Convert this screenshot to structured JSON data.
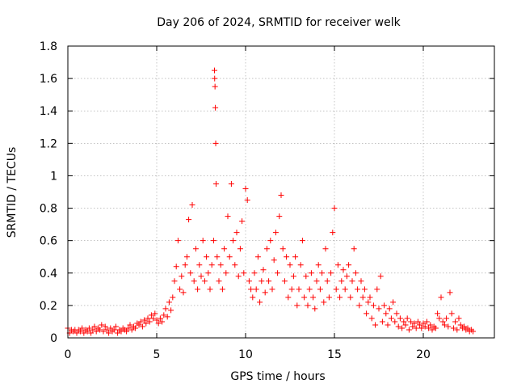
{
  "chart_data": {
    "type": "scatter",
    "title": "Day 206 of 2024, SRMTID for receiver welk",
    "xlabel": "GPS time / hours",
    "ylabel": "SRMTID / TECUs",
    "xlim": [
      0,
      24
    ],
    "ylim": [
      0,
      1.8
    ],
    "xticks": [
      0,
      5,
      10,
      15,
      20
    ],
    "xtick_labels": [
      "0",
      "5",
      "10",
      "15",
      "20"
    ],
    "yticks": [
      0,
      0.2,
      0.4,
      0.6,
      0.8,
      1,
      1.2,
      1.4,
      1.6,
      1.8
    ],
    "ytick_labels": [
      "0",
      "0.2",
      "0.4",
      "0.6",
      "0.8",
      "1",
      "1.2",
      "1.4",
      "1.6",
      "1.8"
    ],
    "grid": true,
    "marker": "plus",
    "color": "#ff0000",
    "series": [
      {
        "name": "SRMTID",
        "points": [
          [
            0.0,
            0.06
          ],
          [
            0.1,
            0.03
          ],
          [
            0.2,
            0.05
          ],
          [
            0.3,
            0.04
          ],
          [
            0.4,
            0.05
          ],
          [
            0.5,
            0.03
          ],
          [
            0.6,
            0.05
          ],
          [
            0.7,
            0.04
          ],
          [
            0.8,
            0.06
          ],
          [
            0.9,
            0.03
          ],
          [
            1.0,
            0.05
          ],
          [
            1.1,
            0.04
          ],
          [
            1.2,
            0.06
          ],
          [
            1.3,
            0.03
          ],
          [
            1.4,
            0.05
          ],
          [
            1.5,
            0.07
          ],
          [
            1.6,
            0.04
          ],
          [
            1.7,
            0.06
          ],
          [
            1.8,
            0.05
          ],
          [
            1.9,
            0.08
          ],
          [
            2.0,
            0.04
          ],
          [
            2.1,
            0.07
          ],
          [
            2.2,
            0.05
          ],
          [
            2.3,
            0.03
          ],
          [
            2.4,
            0.06
          ],
          [
            2.5,
            0.04
          ],
          [
            2.6,
            0.05
          ],
          [
            2.7,
            0.07
          ],
          [
            2.8,
            0.03
          ],
          [
            2.9,
            0.05
          ],
          [
            3.0,
            0.04
          ],
          [
            3.1,
            0.06
          ],
          [
            3.2,
            0.05
          ],
          [
            3.3,
            0.04
          ],
          [
            3.4,
            0.06
          ],
          [
            3.5,
            0.08
          ],
          [
            3.6,
            0.05
          ],
          [
            3.7,
            0.07
          ],
          [
            3.8,
            0.06
          ],
          [
            3.9,
            0.09
          ],
          [
            4.0,
            0.08
          ],
          [
            4.1,
            0.1
          ],
          [
            4.2,
            0.07
          ],
          [
            4.3,
            0.11
          ],
          [
            4.4,
            0.09
          ],
          [
            4.5,
            0.12
          ],
          [
            4.6,
            0.1
          ],
          [
            4.7,
            0.14
          ],
          [
            4.8,
            0.12
          ],
          [
            4.9,
            0.15
          ],
          [
            5.0,
            0.11
          ],
          [
            5.1,
            0.09
          ],
          [
            5.2,
            0.12
          ],
          [
            5.3,
            0.1
          ],
          [
            5.4,
            0.14
          ],
          [
            5.5,
            0.18
          ],
          [
            5.6,
            0.13
          ],
          [
            5.7,
            0.22
          ],
          [
            5.8,
            0.17
          ],
          [
            5.9,
            0.25
          ],
          [
            6.0,
            0.35
          ],
          [
            6.1,
            0.44
          ],
          [
            6.2,
            0.6
          ],
          [
            6.3,
            0.3
          ],
          [
            6.4,
            0.38
          ],
          [
            6.5,
            0.28
          ],
          [
            6.6,
            0.45
          ],
          [
            6.7,
            0.5
          ],
          [
            6.8,
            0.73
          ],
          [
            6.9,
            0.4
          ],
          [
            7.0,
            0.82
          ],
          [
            7.1,
            0.35
          ],
          [
            7.2,
            0.55
          ],
          [
            7.3,
            0.3
          ],
          [
            7.4,
            0.45
          ],
          [
            7.5,
            0.38
          ],
          [
            7.6,
            0.6
          ],
          [
            7.7,
            0.35
          ],
          [
            7.8,
            0.5
          ],
          [
            7.9,
            0.4
          ],
          [
            8.0,
            0.3
          ],
          [
            8.1,
            0.45
          ],
          [
            8.2,
            0.6
          ],
          [
            8.25,
            1.65
          ],
          [
            8.26,
            1.6
          ],
          [
            8.28,
            1.55
          ],
          [
            8.3,
            1.42
          ],
          [
            8.32,
            1.2
          ],
          [
            8.34,
            0.95
          ],
          [
            8.4,
            0.5
          ],
          [
            8.5,
            0.35
          ],
          [
            8.6,
            0.45
          ],
          [
            8.7,
            0.3
          ],
          [
            8.8,
            0.55
          ],
          [
            8.9,
            0.4
          ],
          [
            9.0,
            0.75
          ],
          [
            9.1,
            0.5
          ],
          [
            9.2,
            0.95
          ],
          [
            9.3,
            0.6
          ],
          [
            9.4,
            0.45
          ],
          [
            9.5,
            0.65
          ],
          [
            9.6,
            0.38
          ],
          [
            9.7,
            0.55
          ],
          [
            9.8,
            0.72
          ],
          [
            9.9,
            0.4
          ],
          [
            10.0,
            0.92
          ],
          [
            10.1,
            0.85
          ],
          [
            10.2,
            0.35
          ],
          [
            10.3,
            0.3
          ],
          [
            10.4,
            0.25
          ],
          [
            10.5,
            0.4
          ],
          [
            10.6,
            0.3
          ],
          [
            10.7,
            0.5
          ],
          [
            10.8,
            0.22
          ],
          [
            10.9,
            0.35
          ],
          [
            11.0,
            0.42
          ],
          [
            11.1,
            0.28
          ],
          [
            11.2,
            0.55
          ],
          [
            11.3,
            0.35
          ],
          [
            11.4,
            0.6
          ],
          [
            11.5,
            0.3
          ],
          [
            11.6,
            0.48
          ],
          [
            11.7,
            0.65
          ],
          [
            11.8,
            0.4
          ],
          [
            11.9,
            0.75
          ],
          [
            12.0,
            0.88
          ],
          [
            12.1,
            0.55
          ],
          [
            12.2,
            0.35
          ],
          [
            12.3,
            0.5
          ],
          [
            12.4,
            0.25
          ],
          [
            12.5,
            0.45
          ],
          [
            12.6,
            0.3
          ],
          [
            12.7,
            0.38
          ],
          [
            12.8,
            0.5
          ],
          [
            12.9,
            0.2
          ],
          [
            13.0,
            0.3
          ],
          [
            13.1,
            0.45
          ],
          [
            13.2,
            0.6
          ],
          [
            13.3,
            0.25
          ],
          [
            13.4,
            0.38
          ],
          [
            13.5,
            0.2
          ],
          [
            13.6,
            0.3
          ],
          [
            13.7,
            0.4
          ],
          [
            13.8,
            0.25
          ],
          [
            13.9,
            0.18
          ],
          [
            14.0,
            0.35
          ],
          [
            14.1,
            0.45
          ],
          [
            14.2,
            0.3
          ],
          [
            14.3,
            0.4
          ],
          [
            14.4,
            0.22
          ],
          [
            14.5,
            0.55
          ],
          [
            14.6,
            0.35
          ],
          [
            14.7,
            0.25
          ],
          [
            14.8,
            0.4
          ],
          [
            14.9,
            0.65
          ],
          [
            15.0,
            0.8
          ],
          [
            15.1,
            0.3
          ],
          [
            15.2,
            0.45
          ],
          [
            15.3,
            0.25
          ],
          [
            15.4,
            0.35
          ],
          [
            15.5,
            0.42
          ],
          [
            15.6,
            0.3
          ],
          [
            15.7,
            0.38
          ],
          [
            15.8,
            0.45
          ],
          [
            15.9,
            0.25
          ],
          [
            16.0,
            0.35
          ],
          [
            16.1,
            0.55
          ],
          [
            16.2,
            0.4
          ],
          [
            16.3,
            0.3
          ],
          [
            16.4,
            0.2
          ],
          [
            16.5,
            0.35
          ],
          [
            16.6,
            0.25
          ],
          [
            16.7,
            0.3
          ],
          [
            16.8,
            0.15
          ],
          [
            16.9,
            0.22
          ],
          [
            17.0,
            0.25
          ],
          [
            17.1,
            0.12
          ],
          [
            17.2,
            0.2
          ],
          [
            17.3,
            0.08
          ],
          [
            17.4,
            0.3
          ],
          [
            17.5,
            0.18
          ],
          [
            17.6,
            0.38
          ],
          [
            17.7,
            0.1
          ],
          [
            17.8,
            0.2
          ],
          [
            17.9,
            0.15
          ],
          [
            18.0,
            0.08
          ],
          [
            18.1,
            0.18
          ],
          [
            18.2,
            0.12
          ],
          [
            18.3,
            0.22
          ],
          [
            18.4,
            0.1
          ],
          [
            18.5,
            0.15
          ],
          [
            18.6,
            0.07
          ],
          [
            18.7,
            0.12
          ],
          [
            18.8,
            0.06
          ],
          [
            18.9,
            0.1
          ],
          [
            19.0,
            0.08
          ],
          [
            19.1,
            0.12
          ],
          [
            19.2,
            0.05
          ],
          [
            19.3,
            0.1
          ],
          [
            19.4,
            0.07
          ],
          [
            19.5,
            0.09
          ],
          [
            19.6,
            0.06
          ],
          [
            19.7,
            0.1
          ],
          [
            19.8,
            0.08
          ],
          [
            19.9,
            0.06
          ],
          [
            20.0,
            0.09
          ],
          [
            20.1,
            0.07
          ],
          [
            20.2,
            0.1
          ],
          [
            20.3,
            0.06
          ],
          [
            20.4,
            0.08
          ],
          [
            20.5,
            0.05
          ],
          [
            20.6,
            0.07
          ],
          [
            20.7,
            0.06
          ],
          [
            20.8,
            0.15
          ],
          [
            20.9,
            0.12
          ],
          [
            21.0,
            0.25
          ],
          [
            21.1,
            0.1
          ],
          [
            21.2,
            0.08
          ],
          [
            21.3,
            0.12
          ],
          [
            21.4,
            0.07
          ],
          [
            21.5,
            0.28
          ],
          [
            21.6,
            0.15
          ],
          [
            21.7,
            0.06
          ],
          [
            21.8,
            0.1
          ],
          [
            21.9,
            0.05
          ],
          [
            22.0,
            0.12
          ],
          [
            22.1,
            0.08
          ],
          [
            22.2,
            0.06
          ],
          [
            22.3,
            0.07
          ],
          [
            22.4,
            0.05
          ],
          [
            22.5,
            0.06
          ],
          [
            22.6,
            0.04
          ],
          [
            22.7,
            0.05
          ],
          [
            22.8,
            0.04
          ]
        ]
      }
    ]
  }
}
